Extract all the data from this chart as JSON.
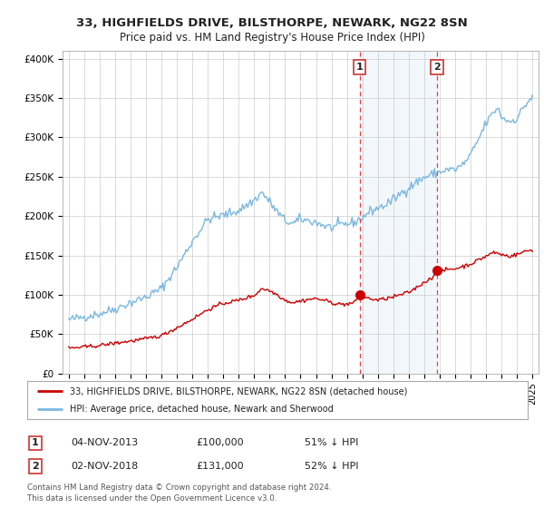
{
  "title": "33, HIGHFIELDS DRIVE, BILSTHORPE, NEWARK, NG22 8SN",
  "subtitle": "Price paid vs. HM Land Registry's House Price Index (HPI)",
  "xlim": [
    1994.6,
    2025.4
  ],
  "ylim": [
    0,
    410000
  ],
  "yticks": [
    0,
    50000,
    100000,
    150000,
    200000,
    250000,
    300000,
    350000,
    400000
  ],
  "ytick_labels": [
    "£0",
    "£50K",
    "£100K",
    "£150K",
    "£200K",
    "£250K",
    "£300K",
    "£350K",
    "£400K"
  ],
  "hpi_color": "#7ab8e0",
  "price_color": "#cc0000",
  "marker1_x": 2013.83,
  "marker1_y": 100000,
  "marker2_x": 2018.83,
  "marker2_y": 131000,
  "vline1_x": 2013.83,
  "vline2_x": 2018.83,
  "shade_color": "#dce9f5",
  "legend_label1": "33, HIGHFIELDS DRIVE, BILSTHORPE, NEWARK, NG22 8SN (detached house)",
  "legend_label2": "HPI: Average price, detached house, Newark and Sherwood",
  "annotation1_date": "04-NOV-2013",
  "annotation1_price": "£100,000",
  "annotation1_pct": "51% ↓ HPI",
  "annotation2_date": "02-NOV-2018",
  "annotation2_price": "£131,000",
  "annotation2_pct": "52% ↓ HPI",
  "footer1": "Contains HM Land Registry data © Crown copyright and database right 2024.",
  "footer2": "This data is licensed under the Open Government Licence v3.0.",
  "background_color": "#ffffff",
  "grid_color": "#cccccc",
  "hpi_anchors": [
    [
      1995.0,
      68000
    ],
    [
      1996.0,
      72000
    ],
    [
      1997.0,
      76000
    ],
    [
      1998.0,
      82000
    ],
    [
      1999.0,
      90000
    ],
    [
      2000.0,
      97000
    ],
    [
      2001.0,
      108000
    ],
    [
      2002.0,
      135000
    ],
    [
      2003.0,
      168000
    ],
    [
      2004.0,
      196000
    ],
    [
      2005.0,
      201000
    ],
    [
      2006.0,
      207000
    ],
    [
      2007.0,
      220000
    ],
    [
      2007.5,
      230000
    ],
    [
      2008.0,
      218000
    ],
    [
      2008.5,
      205000
    ],
    [
      2009.0,
      194000
    ],
    [
      2009.5,
      190000
    ],
    [
      2010.0,
      196000
    ],
    [
      2010.5,
      194000
    ],
    [
      2011.0,
      192000
    ],
    [
      2011.5,
      188000
    ],
    [
      2012.0,
      185000
    ],
    [
      2012.5,
      188000
    ],
    [
      2013.0,
      190000
    ],
    [
      2013.5,
      192000
    ],
    [
      2014.0,
      198000
    ],
    [
      2014.5,
      206000
    ],
    [
      2015.0,
      210000
    ],
    [
      2015.5,
      214000
    ],
    [
      2016.0,
      221000
    ],
    [
      2016.5,
      229000
    ],
    [
      2017.0,
      236000
    ],
    [
      2017.5,
      243000
    ],
    [
      2018.0,
      249000
    ],
    [
      2018.5,
      253000
    ],
    [
      2019.0,
      256000
    ],
    [
      2019.5,
      259000
    ],
    [
      2020.0,
      259000
    ],
    [
      2020.5,
      265000
    ],
    [
      2021.0,
      277000
    ],
    [
      2021.5,
      297000
    ],
    [
      2022.0,
      318000
    ],
    [
      2022.5,
      332000
    ],
    [
      2022.75,
      338000
    ],
    [
      2023.0,
      326000
    ],
    [
      2023.5,
      320000
    ],
    [
      2024.0,
      324000
    ],
    [
      2024.5,
      340000
    ],
    [
      2025.0,
      352000
    ]
  ],
  "price_anchors": [
    [
      1995.0,
      32000
    ],
    [
      1996.0,
      33500
    ],
    [
      1997.0,
      35500
    ],
    [
      1998.0,
      38500
    ],
    [
      1999.0,
      41000
    ],
    [
      2000.0,
      44000
    ],
    [
      2001.0,
      48000
    ],
    [
      2002.0,
      58000
    ],
    [
      2003.0,
      69000
    ],
    [
      2004.0,
      81000
    ],
    [
      2005.0,
      89000
    ],
    [
      2006.0,
      93000
    ],
    [
      2007.0,
      99000
    ],
    [
      2007.5,
      108000
    ],
    [
      2008.0,
      105000
    ],
    [
      2008.5,
      100000
    ],
    [
      2009.0,
      93000
    ],
    [
      2009.5,
      90000
    ],
    [
      2010.0,
      92000
    ],
    [
      2010.5,
      94000
    ],
    [
      2011.0,
      95000
    ],
    [
      2011.5,
      93000
    ],
    [
      2012.0,
      90000
    ],
    [
      2012.5,
      88000
    ],
    [
      2013.0,
      88000
    ],
    [
      2013.5,
      90000
    ],
    [
      2013.83,
      100000
    ],
    [
      2014.0,
      97000
    ],
    [
      2014.5,
      95000
    ],
    [
      2015.0,
      93000
    ],
    [
      2015.5,
      95000
    ],
    [
      2016.0,
      97000
    ],
    [
      2016.5,
      100000
    ],
    [
      2017.0,
      103000
    ],
    [
      2017.5,
      109000
    ],
    [
      2018.0,
      116000
    ],
    [
      2018.5,
      121000
    ],
    [
      2018.83,
      131000
    ],
    [
      2019.0,
      130000
    ],
    [
      2019.5,
      132000
    ],
    [
      2020.0,
      133000
    ],
    [
      2020.5,
      136000
    ],
    [
      2021.0,
      139000
    ],
    [
      2021.5,
      144000
    ],
    [
      2022.0,
      149000
    ],
    [
      2022.5,
      154000
    ],
    [
      2023.0,
      151000
    ],
    [
      2023.5,
      149000
    ],
    [
      2024.0,
      151000
    ],
    [
      2024.5,
      155000
    ],
    [
      2025.0,
      157000
    ]
  ]
}
